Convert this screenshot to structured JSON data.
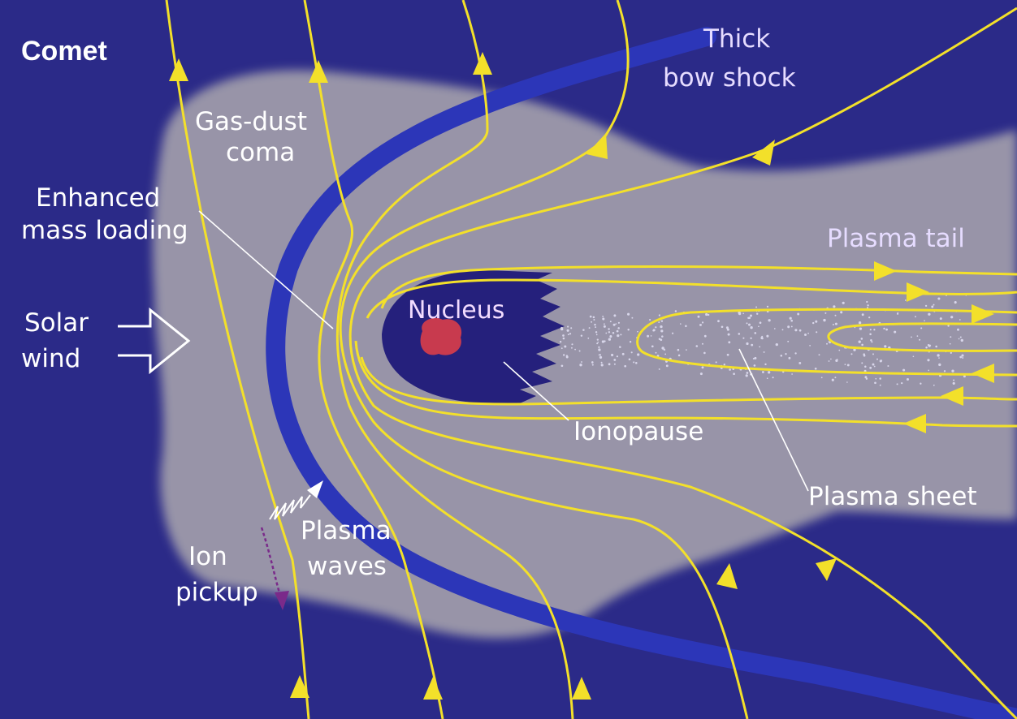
{
  "title": "Comet",
  "labels": {
    "bow_shock": [
      "Thick",
      "bow shock"
    ],
    "coma": [
      "Gas-dust",
      "coma"
    ],
    "mass_loading": [
      "Enhanced",
      "mass loading"
    ],
    "plasma_tail": "Plasma tail",
    "nucleus": "Nucleus",
    "solar_wind": [
      "Solar",
      "wind"
    ],
    "ionopause": "Ionopause",
    "plasma_sheet": "Plasma sheet",
    "plasma_waves": [
      "Plasma",
      "waves"
    ],
    "ion_pickup": [
      "Ion",
      "pickup"
    ]
  },
  "colors": {
    "space": "#2b2a88",
    "coma": "#9894a8",
    "bow_shock": "#2c36b8",
    "field_lines": "#f3e02a",
    "nucleus": "#c83a4e",
    "ionosphere": "#25207c",
    "pointer": "#ffffff",
    "ion_pickup": "#7a2a8a"
  }
}
